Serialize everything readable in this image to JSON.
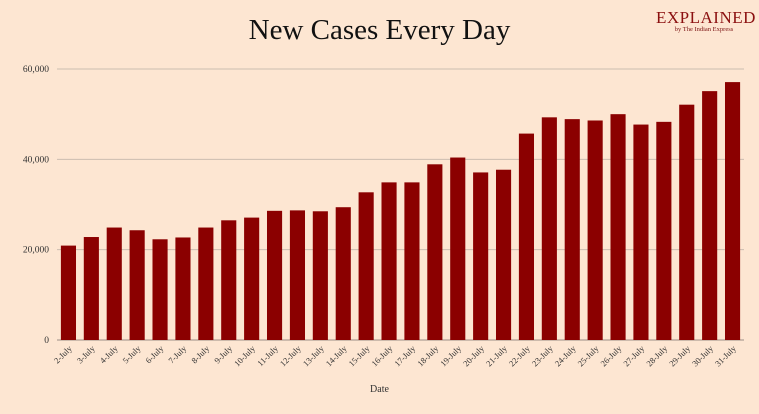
{
  "brand": {
    "logo_text": "EXPLAINED",
    "subtitle": "by The Indian Express"
  },
  "chart_data": {
    "type": "bar",
    "title": "New Cases Every Day",
    "xlabel": "Date",
    "ylabel": "",
    "ylim": [
      0,
      60000
    ],
    "yticks": [
      0,
      20000,
      40000,
      60000
    ],
    "ytick_labels": [
      "0",
      "20,000",
      "40,000",
      "60,000"
    ],
    "grid": true,
    "bar_color": "#8b0000",
    "categories": [
      "2-July",
      "3-July",
      "4-July",
      "5-July",
      "6-July",
      "7-July",
      "8-July",
      "9-July",
      "10-July",
      "11-July",
      "12-July",
      "13-July",
      "14-July",
      "15-July",
      "16-July",
      "17-July",
      "18-July",
      "19-July",
      "20-July",
      "21-July",
      "22-July",
      "23-July",
      "24-July",
      "25-July",
      "26-July",
      "27-July",
      "28-July",
      "29-July",
      "30-July",
      "31-July"
    ],
    "values": [
      20900,
      22800,
      24900,
      24300,
      22300,
      22700,
      24900,
      26500,
      27100,
      28600,
      28700,
      28500,
      29400,
      32700,
      34900,
      34900,
      38900,
      40400,
      37100,
      37700,
      45700,
      49300,
      48900,
      48600,
      50000,
      47700,
      48300,
      52100,
      55100,
      57100
    ]
  }
}
